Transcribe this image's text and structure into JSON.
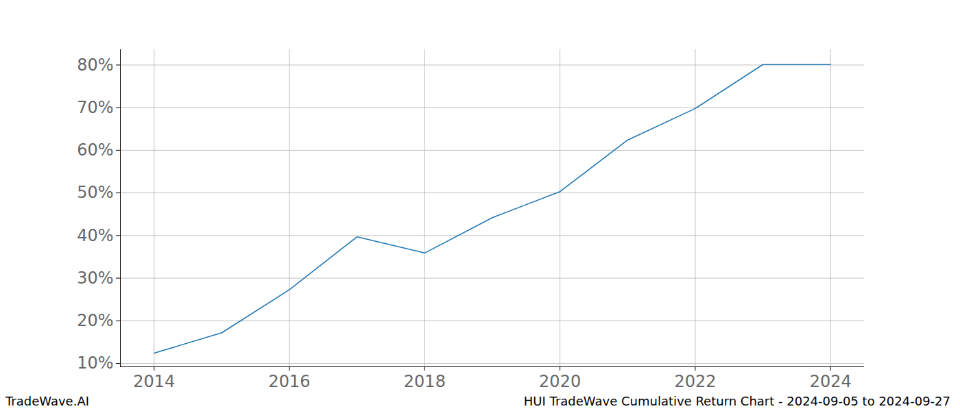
{
  "chart_data": {
    "type": "line",
    "title": "HUI TradeWave Cumulative Return Chart - 2024-09-05 to 2024-09-27",
    "annotations": [
      "TradeWave.AI"
    ],
    "x": [
      2014,
      2015,
      2016,
      2017,
      2018,
      2019,
      2020,
      2021,
      2022,
      2023,
      2024
    ],
    "values": [
      12.4,
      17.2,
      27.3,
      39.7,
      35.9,
      44.2,
      50.3,
      62.4,
      69.8,
      80.1,
      80.1
    ],
    "color": "#1f77b4",
    "xlim": [
      2013.5,
      2024.5
    ],
    "xticks": [
      2014,
      2016,
      2018,
      2020,
      2022,
      2024
    ],
    "ylim": [
      9.2,
      83.6
    ],
    "yticks": [
      {
        "value": 10,
        "label": "10%"
      },
      {
        "value": 20,
        "label": "20%"
      },
      {
        "value": 30,
        "label": "30%"
      },
      {
        "value": 40,
        "label": "40%"
      },
      {
        "value": 50,
        "label": "50%"
      },
      {
        "value": 60,
        "label": "60%"
      },
      {
        "value": 70,
        "label": "70%"
      },
      {
        "value": 80,
        "label": "80%"
      }
    ],
    "grid": true
  }
}
